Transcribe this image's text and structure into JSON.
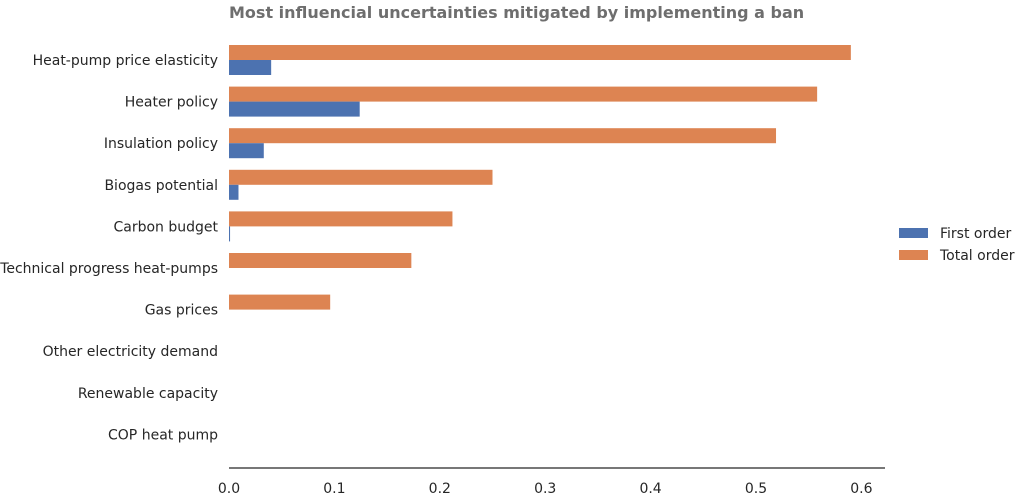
{
  "chart_data": {
    "type": "bar",
    "orientation": "horizontal",
    "title": "Most influencial uncertainties mitigated by implementing a ban",
    "xlabel": "",
    "ylabel": "",
    "xlim": [
      0,
      0.62
    ],
    "xticks": [
      0.0,
      0.1,
      0.2,
      0.3,
      0.4,
      0.5,
      0.6
    ],
    "xtick_labels": [
      "0.0",
      "0.1",
      "0.2",
      "0.3",
      "0.4",
      "0.5",
      "0.6"
    ],
    "grid": false,
    "legend_placement": "right",
    "categories": [
      "Heat-pump price elasticity",
      "Heater policy",
      "Insulation policy",
      "Biogas potential",
      "Carbon budget",
      "Technical progress heat-pumps",
      "Gas prices",
      "Other electricity demand",
      "Renewable capacity",
      "COP heat pump"
    ],
    "series": [
      {
        "name": "Total order",
        "color": "#dd8452",
        "values": [
          0.59,
          0.558,
          0.519,
          0.25,
          0.212,
          0.173,
          0.096,
          0.0,
          0.0,
          0.0
        ]
      },
      {
        "name": "First order",
        "color": "#4c72b0",
        "values": [
          0.04,
          0.124,
          0.033,
          0.009,
          0.001,
          0.0,
          0.0,
          0.0,
          0.0,
          0.0
        ]
      }
    ],
    "legend_order": [
      "First order",
      "Total order"
    ]
  }
}
